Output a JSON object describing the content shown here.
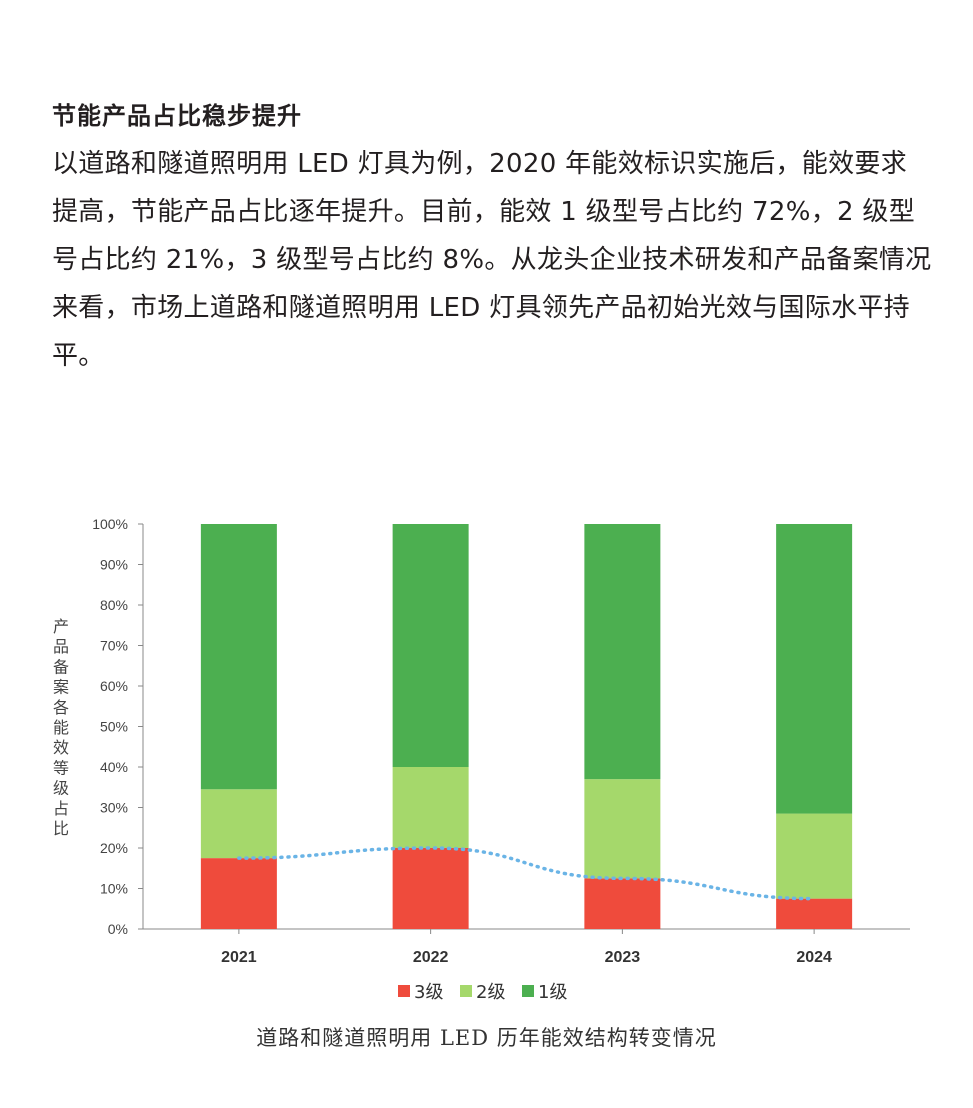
{
  "article": {
    "heading": "节能产品占比稳步提升",
    "body": "以道路和隧道照明用 LED 灯具为例，2020 年能效标识实施后，能效要求提高，节能产品占比逐年提升。目前，能效 1 级型号占比约 72%，2 级型号占比约 21%，3 级型号占比约 8%。从龙头企业技术研发和产品备案情况来看，市场上道路和隧道照明用 LED 灯具领先产品初始光效与国际水平持平。"
  },
  "caption": "道路和隧道照明用 LED 历年能效结构转变情况",
  "colors": {
    "grade1": "#4caf50",
    "grade2": "#a5d86b",
    "grade3": "#ef4b3c",
    "trend": "#6ab4e6"
  },
  "chart_data": {
    "type": "bar",
    "stacked": true,
    "categories": [
      "2021",
      "2022",
      "2023",
      "2024"
    ],
    "series": [
      {
        "name": "3级",
        "values": [
          17.5,
          20,
          12.5,
          7.5
        ]
      },
      {
        "name": "2级",
        "values": [
          17,
          20,
          24.5,
          21
        ]
      },
      {
        "name": "1级",
        "values": [
          65.5,
          60,
          63,
          71.5
        ]
      }
    ],
    "trend_line": {
      "series": "3级",
      "style": "dotted"
    },
    "ylabel": "产品备案各能效等级占比",
    "xlabel": "",
    "ylim": [
      0,
      100
    ],
    "yticks": [
      "0%",
      "10%",
      "20%",
      "30%",
      "40%",
      "50%",
      "60%",
      "70%",
      "80%",
      "90%",
      "100%"
    ],
    "legend": {
      "position": "bottom",
      "order": [
        "3级",
        "2级",
        "1级"
      ]
    },
    "grid": false
  }
}
